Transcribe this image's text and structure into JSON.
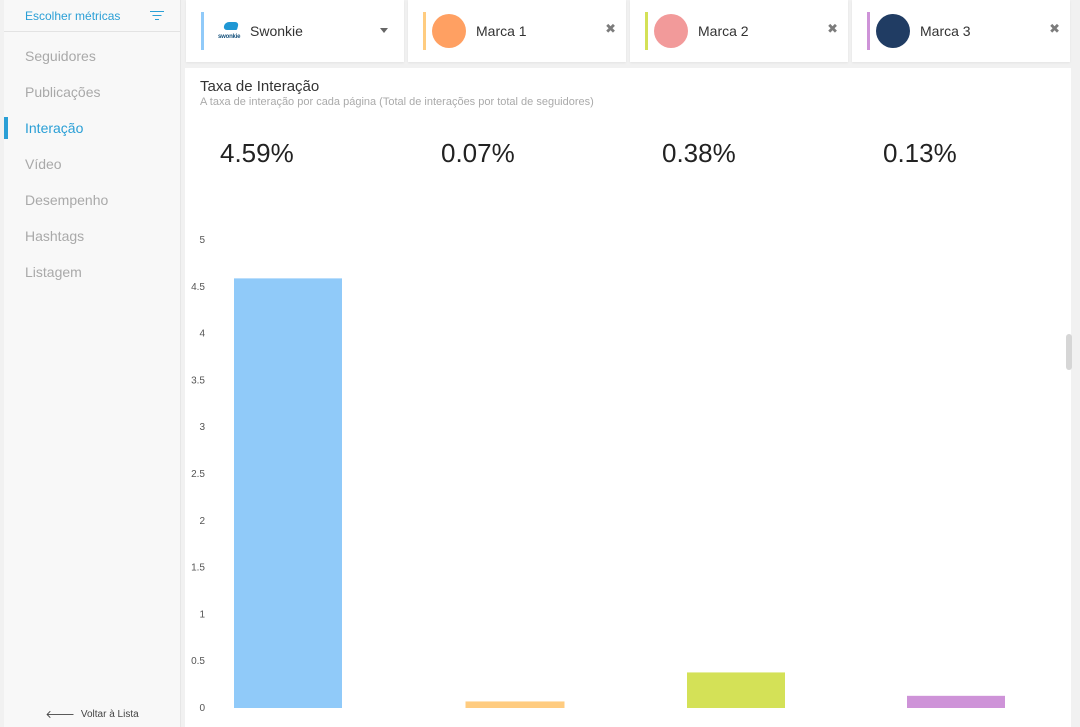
{
  "sidebar": {
    "title": "Escolher métricas",
    "filter_icon": "filter-icon",
    "items": [
      {
        "label": "Seguidores",
        "active": false
      },
      {
        "label": "Publicações",
        "active": false
      },
      {
        "label": "Interação",
        "active": true
      },
      {
        "label": "Vídeo",
        "active": false
      },
      {
        "label": "Desempenho",
        "active": false
      },
      {
        "label": "Hashtags",
        "active": false
      },
      {
        "label": "Listagem",
        "active": false
      }
    ],
    "back_label": "Voltar à Lista"
  },
  "brands": [
    {
      "name": "Swonkie",
      "logo_text": "swonkie",
      "color": "#90caf9",
      "avatar_color": null
    },
    {
      "name": "Marca 1",
      "color": "#ffcc80",
      "avatar_color": "#ffa062"
    },
    {
      "name": "Marca 2",
      "color": "#d4e157",
      "avatar_color": "#f29a9a"
    },
    {
      "name": "Marca 3",
      "color": "#ce93d8",
      "avatar_color": "#203c63"
    }
  ],
  "panel": {
    "title": "Taxa de Interação",
    "subtitle": "A taxa de interação por cada página (Total de interações por total de seguidores)",
    "values": [
      "4.59%",
      "0.07%",
      "0.38%",
      "0.13%"
    ]
  },
  "chart_data": {
    "type": "bar",
    "categories": [
      "Swonkie",
      "Marca 1",
      "Marca 2",
      "Marca 3"
    ],
    "values": [
      4.59,
      0.07,
      0.38,
      0.13
    ],
    "colors": [
      "#90caf9",
      "#ffcc80",
      "#d4e157",
      "#ce93d8"
    ],
    "ylim": [
      0,
      5
    ],
    "yticks": [
      "0",
      "0.5",
      "1",
      "1.5",
      "2",
      "2.5",
      "3",
      "3.5",
      "4",
      "4.5",
      "5"
    ],
    "grid": false,
    "legend": "none"
  }
}
